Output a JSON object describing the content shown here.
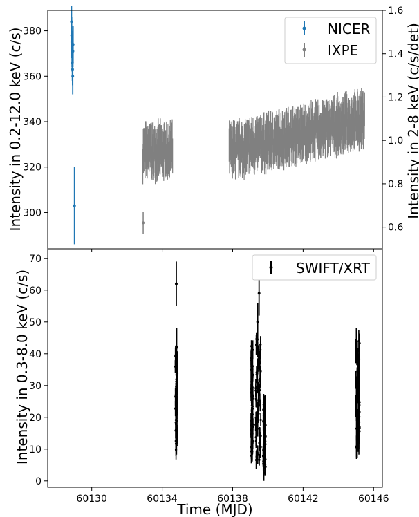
{
  "chart_data": [
    {
      "type": "scatter",
      "panel": "top",
      "xlabel": "",
      "ylabel": "Intensity in 0.2-12.0 keV (c/s)",
      "ylabel_right": "Intensity in 2-8 keV (c/s/det)",
      "xlim": [
        60127.5,
        60146.5
      ],
      "ylim": [
        284,
        389
      ],
      "ylim_right": [
        0.5,
        1.6
      ],
      "yticks": [
        "300",
        "320",
        "340",
        "360",
        "380"
      ],
      "yticks_right": [
        "0.6",
        "0.8",
        "1.0",
        "1.2",
        "1.4",
        "1.6"
      ],
      "legend_position": "top-right",
      "series": [
        {
          "name": "NICER",
          "color": "#1f77b4",
          "axis": "left",
          "points": [
            {
              "x": 60128.85,
              "y": 384,
              "err": 7
            },
            {
              "x": 60128.86,
              "y": 378,
              "err": 8
            },
            {
              "x": 60128.87,
              "y": 375,
              "err": 7
            },
            {
              "x": 60128.88,
              "y": 372,
              "err": 8
            },
            {
              "x": 60128.89,
              "y": 369,
              "err": 7
            },
            {
              "x": 60128.9,
              "y": 366,
              "err": 8
            },
            {
              "x": 60128.91,
              "y": 363,
              "err": 7
            },
            {
              "x": 60128.92,
              "y": 360,
              "err": 8
            },
            {
              "x": 60128.93,
              "y": 371,
              "err": 7
            },
            {
              "x": 60128.94,
              "y": 374,
              "err": 8
            },
            {
              "x": 60129.02,
              "y": 303,
              "err": 17
            }
          ]
        },
        {
          "name": "IXPE",
          "color": "#808080",
          "axis": "right",
          "points": [
            {
              "x": 60132.92,
              "y": 0.62,
              "err": 0.05
            }
          ],
          "segments": [
            {
              "start": 60132.9,
              "end": 60134.6,
              "start_level": 0.95,
              "end_level": 0.95,
              "scatter": 0.07,
              "err": 0.07
            },
            {
              "start": 60137.8,
              "end": 60145.5,
              "start_level": 0.95,
              "end_level": 1.1,
              "scatter": 0.07,
              "err": 0.07
            }
          ]
        }
      ]
    },
    {
      "type": "scatter",
      "panel": "bottom",
      "xlabel": "Time (MJD)",
      "ylabel": "Intensity in 0.3-8.0 keV (c/s)",
      "xlim": [
        60127.5,
        60146.5
      ],
      "ylim": [
        -2,
        73
      ],
      "xticks": [
        "60130",
        "60134",
        "60138",
        "60142",
        "60146"
      ],
      "yticks": [
        "0",
        "10",
        "20",
        "30",
        "40",
        "50",
        "60",
        "70"
      ],
      "legend_position": "top-right",
      "series": [
        {
          "name": "SWIFT/XRT",
          "color": "#000000",
          "clusters": [
            {
              "x": 60134.8,
              "width": 0.12,
              "min": 10,
              "max": 40,
              "err": 2.5
            },
            {
              "x": 60139.1,
              "width": 0.12,
              "min": 8,
              "max": 42,
              "err": 2.5
            },
            {
              "x": 60139.45,
              "width": 0.3,
              "min": 6,
              "max": 45,
              "err": 2.5
            },
            {
              "x": 60139.8,
              "width": 0.15,
              "min": 3,
              "max": 25,
              "err": 2.5
            },
            {
              "x": 60145.1,
              "width": 0.22,
              "min": 10,
              "max": 45,
              "err": 3
            }
          ],
          "points": [
            {
              "x": 60134.8,
              "y": 62,
              "err": 7
            },
            {
              "x": 60134.82,
              "y": 42,
              "err": 6
            },
            {
              "x": 60139.42,
              "y": 50,
              "err": 6
            },
            {
              "x": 60139.5,
              "y": 59,
              "err": 7
            }
          ]
        }
      ]
    }
  ]
}
